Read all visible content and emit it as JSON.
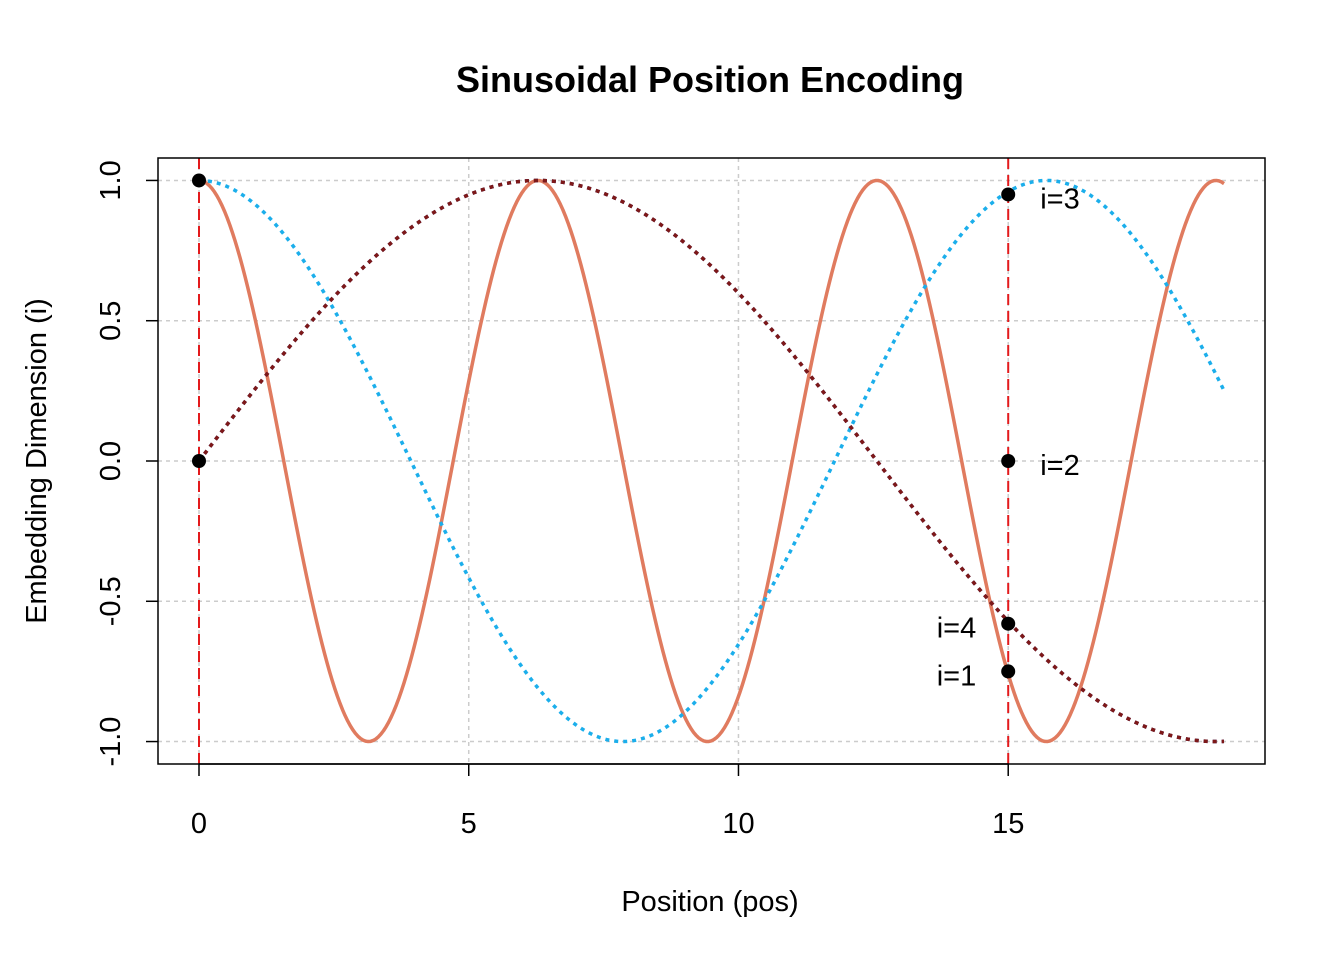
{
  "chart_data": {
    "type": "line",
    "title": "Sinusoidal Position Encoding",
    "xlabel": "Position (pos)",
    "ylabel": "Embedding Dimension (i)",
    "xlim": [
      -0.76,
      19.76
    ],
    "ylim": [
      -1.08,
      1.08
    ],
    "xticks": [
      0,
      5,
      10,
      15
    ],
    "yticks": [
      -1.0,
      -0.5,
      0.0,
      0.5,
      1.0
    ],
    "xtick_labels": [
      "0",
      "5",
      "10",
      "15"
    ],
    "ytick_labels": [
      "-1.0",
      "-0.5",
      "0.0",
      "0.5",
      "1.0"
    ],
    "grid": true,
    "x_range": [
      0,
      19
    ],
    "series": [
      {
        "formula": "cos(pos)",
        "color": "#E07B5F",
        "style": "solid",
        "width": 3.5
      },
      {
        "formula": "sin(pos/4)",
        "color": "#00005A",
        "style": "dotted",
        "width": 3.5
      },
      {
        "formula": "cos(pos/2.5)",
        "color": "#1BAEEB",
        "style": "dotted",
        "width": 3.5
      },
      {
        "formula": "sin(pos/4)",
        "color": "#7E1818",
        "style": "dotted",
        "width": 3.5
      }
    ],
    "vlines": [
      {
        "x": 0,
        "color": "#E31A1C"
      },
      {
        "x": 15,
        "color": "#E31A1C"
      }
    ],
    "points": [
      {
        "x": 0,
        "y": 1.0
      },
      {
        "x": 0,
        "y": 0.0
      },
      {
        "x": 15,
        "y": 0.95
      },
      {
        "x": 15,
        "y": 0.0
      },
      {
        "x": 15,
        "y": -0.58
      },
      {
        "x": 15,
        "y": -0.75
      }
    ],
    "annotations": [
      {
        "text": "i=3",
        "x": 15,
        "y": 0.95,
        "side": "right"
      },
      {
        "text": "i=2",
        "x": 15,
        "y": 0.0,
        "side": "right"
      },
      {
        "text": "i=4",
        "x": 15,
        "y": -0.58,
        "side": "left"
      },
      {
        "text": "i=1",
        "x": 15,
        "y": -0.75,
        "side": "left"
      }
    ]
  }
}
